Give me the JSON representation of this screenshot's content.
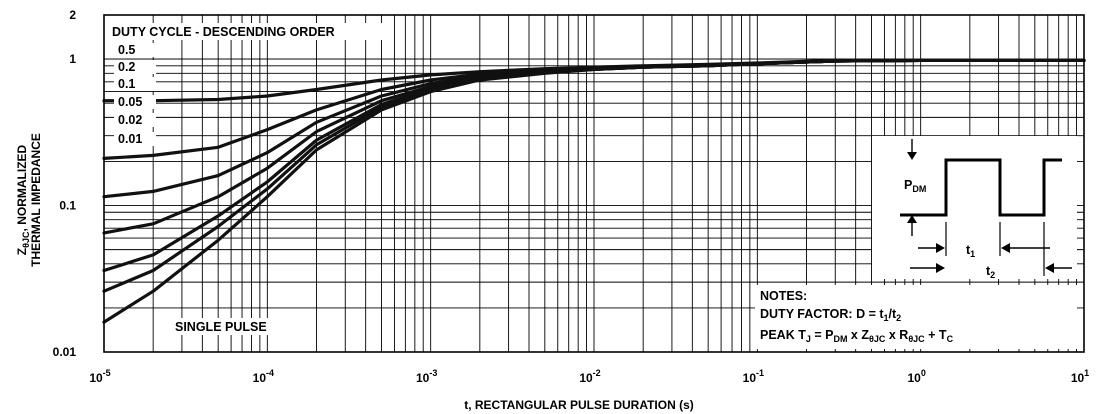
{
  "chart_data": {
    "type": "line",
    "xscale": "log",
    "yscale": "log",
    "xlim": [
      1e-05,
      10
    ],
    "ylim": [
      0.01,
      2
    ],
    "xlabel": "t, RECTANGULAR PULSE DURATION (s)",
    "ylabel_lines": [
      "ZθJC, NORMALIZED",
      "THERMAL IMPEDANCE"
    ],
    "x_ticks": [
      {
        "value": 1e-05,
        "mant": "10",
        "exp": "-5"
      },
      {
        "value": 0.0001,
        "mant": "10",
        "exp": "-4"
      },
      {
        "value": 0.001,
        "mant": "10",
        "exp": "-3"
      },
      {
        "value": 0.01,
        "mant": "10",
        "exp": "-2"
      },
      {
        "value": 0.1,
        "mant": "10",
        "exp": "-1"
      },
      {
        "value": 1,
        "mant": "10",
        "exp": "0"
      },
      {
        "value": 10,
        "mant": "10",
        "exp": "1"
      }
    ],
    "y_ticks": [
      {
        "value": 2,
        "label": "2"
      },
      {
        "value": 1,
        "label": "1"
      },
      {
        "value": 0.1,
        "label": "0.1"
      },
      {
        "value": 0.01,
        "label": "0.01"
      }
    ],
    "grid": true,
    "legend_title": "DUTY CYCLE - DESCENDING ORDER",
    "legend_items": [
      "0.5",
      "0.2",
      "0.1",
      "0.05",
      "0.02",
      "0.01"
    ],
    "single_pulse_label": "SINGLE PULSE",
    "x_common": [
      1e-05,
      2e-05,
      5e-05,
      0.0001,
      0.0002,
      0.0005,
      0.001,
      0.002,
      0.005,
      0.01,
      0.02,
      0.05,
      0.1,
      0.3,
      1,
      10
    ],
    "series": [
      {
        "values": [
          0.52,
          0.52,
          0.53,
          0.56,
          0.62,
          0.72,
          0.78,
          0.82,
          0.86,
          0.88,
          0.9,
          0.92,
          0.94,
          0.98,
          0.98,
          0.98
        ]
      },
      {
        "values": [
          0.21,
          0.22,
          0.25,
          0.33,
          0.45,
          0.62,
          0.72,
          0.79,
          0.84,
          0.87,
          0.89,
          0.91,
          0.93,
          0.97,
          0.98,
          0.98
        ]
      },
      {
        "values": [
          0.115,
          0.125,
          0.16,
          0.23,
          0.37,
          0.56,
          0.68,
          0.77,
          0.83,
          0.86,
          0.88,
          0.91,
          0.93,
          0.97,
          0.98,
          0.98
        ]
      },
      {
        "values": [
          0.065,
          0.075,
          0.115,
          0.18,
          0.32,
          0.52,
          0.65,
          0.75,
          0.82,
          0.86,
          0.88,
          0.9,
          0.93,
          0.97,
          0.98,
          0.98
        ]
      },
      {
        "values": [
          0.036,
          0.046,
          0.085,
          0.145,
          0.28,
          0.49,
          0.63,
          0.74,
          0.81,
          0.85,
          0.88,
          0.9,
          0.93,
          0.97,
          0.98,
          0.98
        ]
      },
      {
        "values": [
          0.026,
          0.036,
          0.072,
          0.13,
          0.26,
          0.47,
          0.62,
          0.73,
          0.81,
          0.85,
          0.88,
          0.9,
          0.93,
          0.97,
          0.98,
          0.98
        ]
      },
      {
        "values": [
          0.016,
          0.026,
          0.058,
          0.115,
          0.24,
          0.45,
          0.6,
          0.72,
          0.8,
          0.85,
          0.88,
          0.9,
          0.93,
          0.97,
          0.98,
          0.98
        ]
      }
    ],
    "notes": {
      "title": "NOTES:",
      "line1_prefix": "DUTY FACTOR: D = t",
      "line1_sub1": "1",
      "line1_mid": "/t",
      "line1_sub2": "2",
      "line2": [
        {
          "t": "PEAK T"
        },
        {
          "t": "J",
          "sub": true
        },
        {
          "t": " = P"
        },
        {
          "t": "DM",
          "sub": true
        },
        {
          "t": " x Z"
        },
        {
          "t": "θJC",
          "sub": true
        },
        {
          "t": " x R"
        },
        {
          "t": "θJC",
          "sub": true
        },
        {
          "t": " + T"
        },
        {
          "t": "C",
          "sub": true
        }
      ]
    },
    "inset": {
      "pdm_main": "P",
      "pdm_sub": "DM",
      "t1_main": "t",
      "t1_sub": "1",
      "t2_main": "t",
      "t2_sub": "2"
    }
  }
}
